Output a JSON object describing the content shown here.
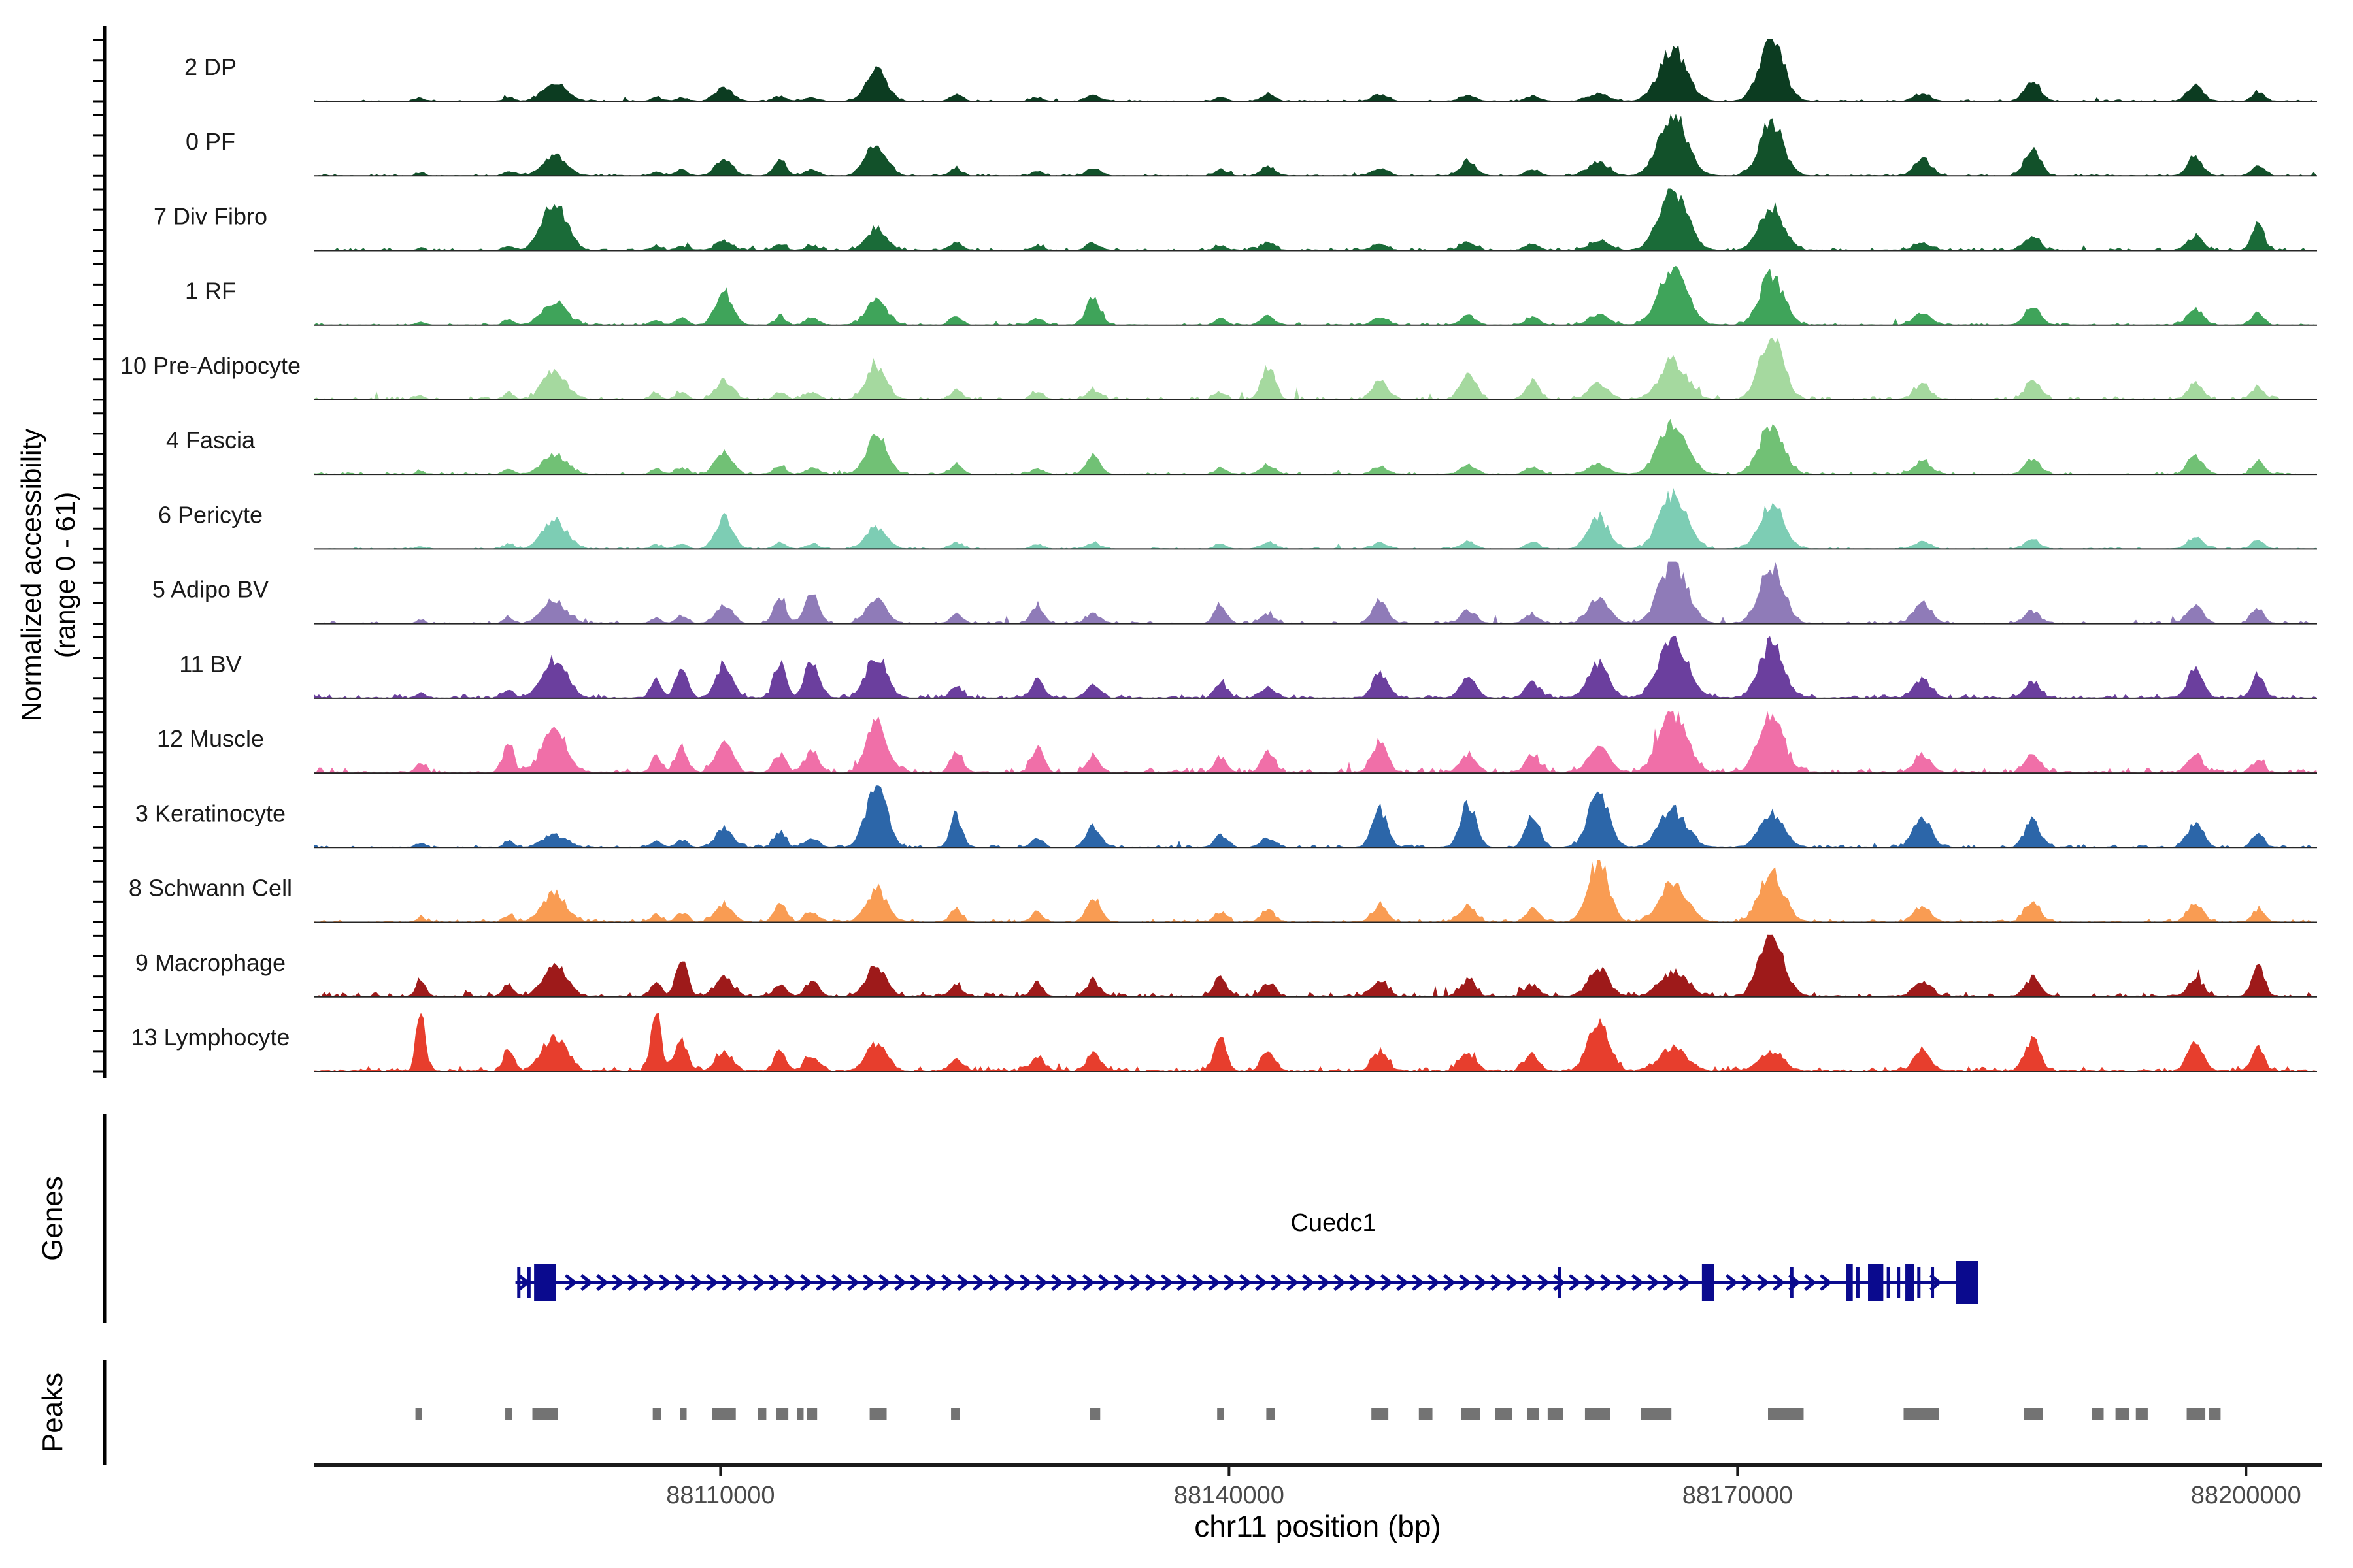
{
  "labels": {
    "y_line1": "Normalized accessibility",
    "y_line2": "(range 0 - 61)",
    "x_axis": "chr11 position (bp)",
    "genes_section": "Genes",
    "peaks_section": "Peaks"
  },
  "chart_data": {
    "type": "area",
    "subtype": "genome-coverage-tracks",
    "chromosome": "chr11",
    "x_domain_bp": [
      88086000,
      88204500
    ],
    "x_ticks": [
      {
        "bp": 88110000,
        "label": "88110000"
      },
      {
        "bp": 88140000,
        "label": "88140000"
      },
      {
        "bp": 88170000,
        "label": "88170000"
      },
      {
        "bp": 88200000,
        "label": "88200000"
      }
    ],
    "y_max": 61,
    "y_range_label": "0 - 61",
    "y_tick_values": [
      0,
      20,
      40,
      60
    ],
    "loci_bp": [
      88092300,
      88097500,
      88100200,
      88106200,
      88107700,
      88110200,
      88113500,
      88115400,
      88119200,
      88123900,
      88128700,
      88132000,
      88139500,
      88142300,
      88148900,
      88154100,
      88157900,
      88161800,
      88166200,
      88172000,
      88180900,
      88187400,
      88197000,
      88200700
    ],
    "sigma_bp": [
      250,
      300,
      700,
      300,
      350,
      500,
      350,
      400,
      600,
      350,
      350,
      400,
      350,
      400,
      450,
      450,
      400,
      600,
      800,
      700,
      500,
      450,
      450,
      350
    ],
    "tracks": [
      {
        "label": "2 DP",
        "color": "#0c3c21",
        "noise": 0.03,
        "heights": [
          0.04,
          0.06,
          0.3,
          0.06,
          0.06,
          0.22,
          0.08,
          0.06,
          0.5,
          0.12,
          0.05,
          0.1,
          0.07,
          0.12,
          0.1,
          0.1,
          0.08,
          0.12,
          0.85,
          1.0,
          0.12,
          0.35,
          0.28,
          0.15
        ]
      },
      {
        "label": "0 PF",
        "color": "#12512a",
        "noise": 0.035,
        "heights": [
          0.05,
          0.07,
          0.32,
          0.07,
          0.1,
          0.26,
          0.28,
          0.1,
          0.5,
          0.12,
          0.07,
          0.12,
          0.1,
          0.15,
          0.12,
          0.24,
          0.1,
          0.22,
          1.0,
          0.85,
          0.28,
          0.45,
          0.3,
          0.18
        ]
      },
      {
        "label": "7 Div Fibro",
        "color": "#1a6b38",
        "noise": 0.05,
        "heights": [
          0.04,
          0.07,
          0.78,
          0.07,
          0.07,
          0.14,
          0.1,
          0.07,
          0.35,
          0.14,
          0.07,
          0.12,
          0.07,
          0.12,
          0.1,
          0.12,
          0.1,
          0.15,
          1.0,
          0.7,
          0.12,
          0.2,
          0.22,
          0.45
        ]
      },
      {
        "label": "1 RF",
        "color": "#3fa45a",
        "noise": 0.04,
        "heights": [
          0.05,
          0.09,
          0.38,
          0.08,
          0.1,
          0.55,
          0.12,
          0.1,
          0.42,
          0.15,
          0.1,
          0.45,
          0.1,
          0.14,
          0.12,
          0.15,
          0.12,
          0.15,
          0.95,
          0.8,
          0.2,
          0.3,
          0.26,
          0.2
        ]
      },
      {
        "label": "10 Pre-Adipocyte",
        "color": "#a5d99f",
        "noise": 0.06,
        "heights": [
          0.07,
          0.09,
          0.45,
          0.1,
          0.12,
          0.3,
          0.12,
          0.12,
          0.5,
          0.15,
          0.12,
          0.15,
          0.12,
          0.5,
          0.28,
          0.45,
          0.3,
          0.25,
          0.6,
          1.0,
          0.25,
          0.3,
          0.25,
          0.2
        ]
      },
      {
        "label": "4 Fascia",
        "color": "#71c175",
        "noise": 0.045,
        "heights": [
          0.05,
          0.09,
          0.32,
          0.09,
          0.1,
          0.36,
          0.12,
          0.1,
          0.62,
          0.15,
          0.1,
          0.3,
          0.1,
          0.15,
          0.12,
          0.15,
          0.12,
          0.16,
          0.85,
          0.8,
          0.2,
          0.25,
          0.3,
          0.2
        ]
      },
      {
        "label": "6 Pericyte",
        "color": "#7dcdb4",
        "noise": 0.035,
        "heights": [
          0.04,
          0.07,
          0.48,
          0.07,
          0.08,
          0.52,
          0.1,
          0.08,
          0.36,
          0.1,
          0.08,
          0.1,
          0.08,
          0.1,
          0.1,
          0.12,
          0.1,
          0.5,
          0.85,
          0.75,
          0.12,
          0.15,
          0.2,
          0.15
        ]
      },
      {
        "label": "5 Adipo BV",
        "color": "#8f7bb8",
        "noise": 0.05,
        "heights": [
          0.05,
          0.09,
          0.36,
          0.09,
          0.12,
          0.3,
          0.45,
          0.5,
          0.36,
          0.15,
          0.3,
          0.15,
          0.3,
          0.15,
          0.35,
          0.2,
          0.15,
          0.4,
          1.0,
          0.9,
          0.35,
          0.2,
          0.3,
          0.25
        ]
      },
      {
        "label": "11 BV",
        "color": "#6b3f9e",
        "noise": 0.07,
        "heights": [
          0.08,
          0.12,
          0.62,
          0.3,
          0.5,
          0.5,
          0.55,
          0.6,
          0.7,
          0.2,
          0.3,
          0.2,
          0.25,
          0.2,
          0.4,
          0.35,
          0.25,
          0.55,
          1.0,
          0.9,
          0.3,
          0.25,
          0.45,
          0.4
        ]
      },
      {
        "label": "12 Muscle",
        "color": "#f06fa8",
        "noise": 0.09,
        "heights": [
          0.15,
          0.5,
          0.72,
          0.25,
          0.4,
          0.5,
          0.3,
          0.35,
          0.8,
          0.35,
          0.4,
          0.25,
          0.25,
          0.3,
          0.5,
          0.3,
          0.3,
          0.4,
          1.0,
          0.95,
          0.25,
          0.3,
          0.25,
          0.2
        ]
      },
      {
        "label": "3 Keratinocyte",
        "color": "#2c66a9",
        "noise": 0.05,
        "heights": [
          0.07,
          0.09,
          0.2,
          0.1,
          0.12,
          0.3,
          0.25,
          0.15,
          1.0,
          0.5,
          0.15,
          0.35,
          0.2,
          0.15,
          0.6,
          0.7,
          0.5,
          0.9,
          0.6,
          0.55,
          0.5,
          0.45,
          0.4,
          0.2
        ]
      },
      {
        "label": "8 Schwann Cell",
        "color": "#f99c53",
        "noise": 0.06,
        "heights": [
          0.07,
          0.11,
          0.46,
          0.11,
          0.14,
          0.3,
          0.3,
          0.15,
          0.5,
          0.2,
          0.15,
          0.4,
          0.15,
          0.2,
          0.25,
          0.25,
          0.2,
          1.0,
          0.6,
          0.8,
          0.25,
          0.35,
          0.3,
          0.2
        ]
      },
      {
        "label": "9 Macrophage",
        "color": "#9e1a1a",
        "noise": 0.08,
        "heights": [
          0.3,
          0.2,
          0.5,
          0.25,
          0.6,
          0.3,
          0.2,
          0.25,
          0.45,
          0.2,
          0.2,
          0.25,
          0.35,
          0.2,
          0.25,
          0.25,
          0.2,
          0.45,
          0.4,
          1.0,
          0.25,
          0.3,
          0.25,
          0.55
        ]
      },
      {
        "label": "13 Lymphocyte",
        "color": "#e73e2d",
        "noise": 0.09,
        "heights": [
          1.0,
          0.35,
          0.55,
          0.9,
          0.5,
          0.3,
          0.35,
          0.25,
          0.42,
          0.2,
          0.25,
          0.3,
          0.5,
          0.3,
          0.3,
          0.3,
          0.25,
          0.8,
          0.35,
          0.3,
          0.3,
          0.5,
          0.45,
          0.4
        ]
      }
    ],
    "gene": {
      "name": "Cuedc1",
      "strand": "+",
      "color": "#0a0a8e",
      "start_bp": 88097900,
      "end_bp": 88184200,
      "thin_exons_bp": [
        88098100,
        88098700,
        88159500,
        88173200,
        88177100,
        88178900,
        88179500,
        88180700,
        88181500
      ],
      "exon_boxes_bp": [
        [
          88099000,
          88100300
        ],
        [
          88167900,
          88168600
        ],
        [
          88176400,
          88176800
        ],
        [
          88177700,
          88178600
        ],
        [
          88179900,
          88180400
        ],
        [
          88182900,
          88184200
        ]
      ]
    },
    "peaks": {
      "color": "#737373",
      "intervals_bp": [
        [
          88092000,
          88092400
        ],
        [
          88097300,
          88097700
        ],
        [
          88098900,
          88100400
        ],
        [
          88106000,
          88106500
        ],
        [
          88107600,
          88108000
        ],
        [
          88109500,
          88110900
        ],
        [
          88112200,
          88112700
        ],
        [
          88113300,
          88114000
        ],
        [
          88114500,
          88114900
        ],
        [
          88115100,
          88115700
        ],
        [
          88118800,
          88119800
        ],
        [
          88123600,
          88124100
        ],
        [
          88131800,
          88132400
        ],
        [
          88139300,
          88139700
        ],
        [
          88142200,
          88142700
        ],
        [
          88148400,
          88149400
        ],
        [
          88151200,
          88152000
        ],
        [
          88153700,
          88154800
        ],
        [
          88155700,
          88156700
        ],
        [
          88157600,
          88158300
        ],
        [
          88158800,
          88159700
        ],
        [
          88161000,
          88162500
        ],
        [
          88164300,
          88166100
        ],
        [
          88171800,
          88173900
        ],
        [
          88179800,
          88181900
        ],
        [
          88186900,
          88188000
        ],
        [
          88190900,
          88191600
        ],
        [
          88192300,
          88193100
        ],
        [
          88193500,
          88194200
        ],
        [
          88196500,
          88197600
        ],
        [
          88197800,
          88198500
        ]
      ]
    }
  }
}
